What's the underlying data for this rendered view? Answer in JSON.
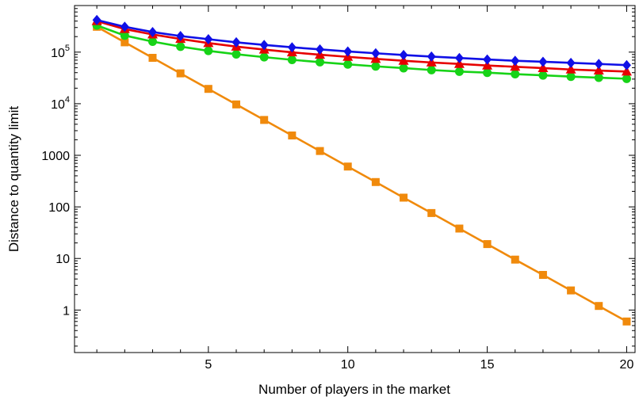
{
  "chart_data": {
    "type": "line",
    "title": "",
    "xlabel": "Number of players in the market",
    "ylabel": "Distance to quantity limit",
    "y_scale": "log",
    "xlim": [
      0.2,
      20.3
    ],
    "ylim": [
      0.15,
      800000
    ],
    "x_ticks": [
      5,
      10,
      15,
      20
    ],
    "y_ticks": [
      {
        "value": 1,
        "label": "1"
      },
      {
        "value": 10,
        "label": "10"
      },
      {
        "value": 100,
        "label": "100"
      },
      {
        "value": 1000,
        "label": "1000"
      },
      {
        "value": 10000,
        "label": "10",
        "exp": "4"
      },
      {
        "value": 100000,
        "label": "10",
        "exp": "5"
      }
    ],
    "x": [
      1,
      2,
      3,
      4,
      5,
      6,
      7,
      8,
      9,
      10,
      11,
      12,
      13,
      14,
      15,
      16,
      17,
      18,
      19,
      20
    ],
    "series": [
      {
        "color": "#1010e6",
        "marker": "diamond",
        "values": [
          420000,
          310000,
          245000,
          205000,
          178000,
          155000,
          138000,
          124000,
          113000,
          103000,
          95000,
          88000,
          82000,
          77000,
          72000,
          68000,
          65000,
          62000,
          59000,
          56000
        ]
      },
      {
        "color": "#e60000",
        "marker": "triangle",
        "values": [
          400000,
          280000,
          220000,
          180000,
          150000,
          128000,
          112000,
          99000,
          89000,
          81000,
          74000,
          68000,
          63000,
          59000,
          55000,
          52000,
          49000,
          46000,
          44000,
          42000
        ]
      },
      {
        "color": "#17d317",
        "marker": "circle",
        "values": [
          330000,
          210000,
          160000,
          128000,
          106000,
          91000,
          80000,
          71000,
          64000,
          58000,
          53000,
          49000,
          45000,
          42000,
          40000,
          37500,
          35500,
          33500,
          32000,
          30500
        ]
      },
      {
        "color": "#f08a0c",
        "marker": "square",
        "values": [
          310000,
          155000,
          77500,
          38750,
          19375,
          9688,
          4844,
          2422,
          1211,
          605,
          303,
          151,
          76,
          38,
          19,
          9.5,
          4.8,
          2.4,
          1.2,
          0.6
        ]
      }
    ]
  }
}
